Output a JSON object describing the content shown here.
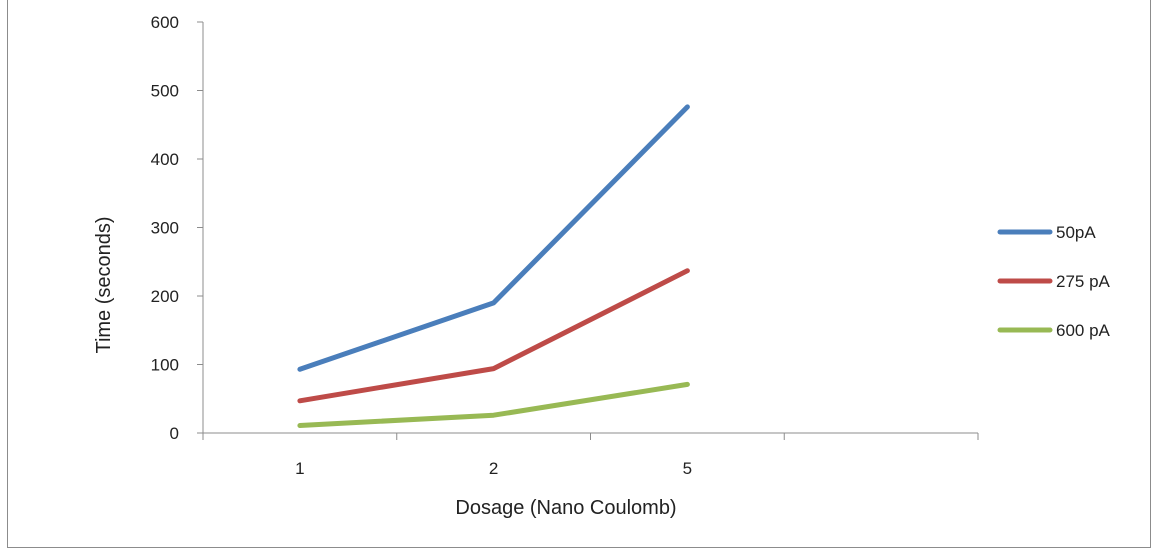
{
  "chart_data": {
    "type": "line",
    "categories": [
      "1",
      "2",
      "5"
    ],
    "xlabel": "Dosage (Nano Coulomb)",
    "ylabel": "Time (seconds)",
    "ylim": [
      0,
      600
    ],
    "yticks": [
      "0",
      "100",
      "200",
      "300",
      "400",
      "500",
      "600"
    ],
    "grid": false,
    "legend_position": "right",
    "series": [
      {
        "name": "50pA",
        "values": [
          93,
          190,
          476
        ],
        "color": "#4a7ebb"
      },
      {
        "name": "275 pA",
        "values": [
          47,
          94,
          237
        ],
        "color": "#be4b48"
      },
      {
        "name": "600 pA",
        "values": [
          11,
          26,
          71
        ],
        "color": "#98b954"
      }
    ]
  }
}
